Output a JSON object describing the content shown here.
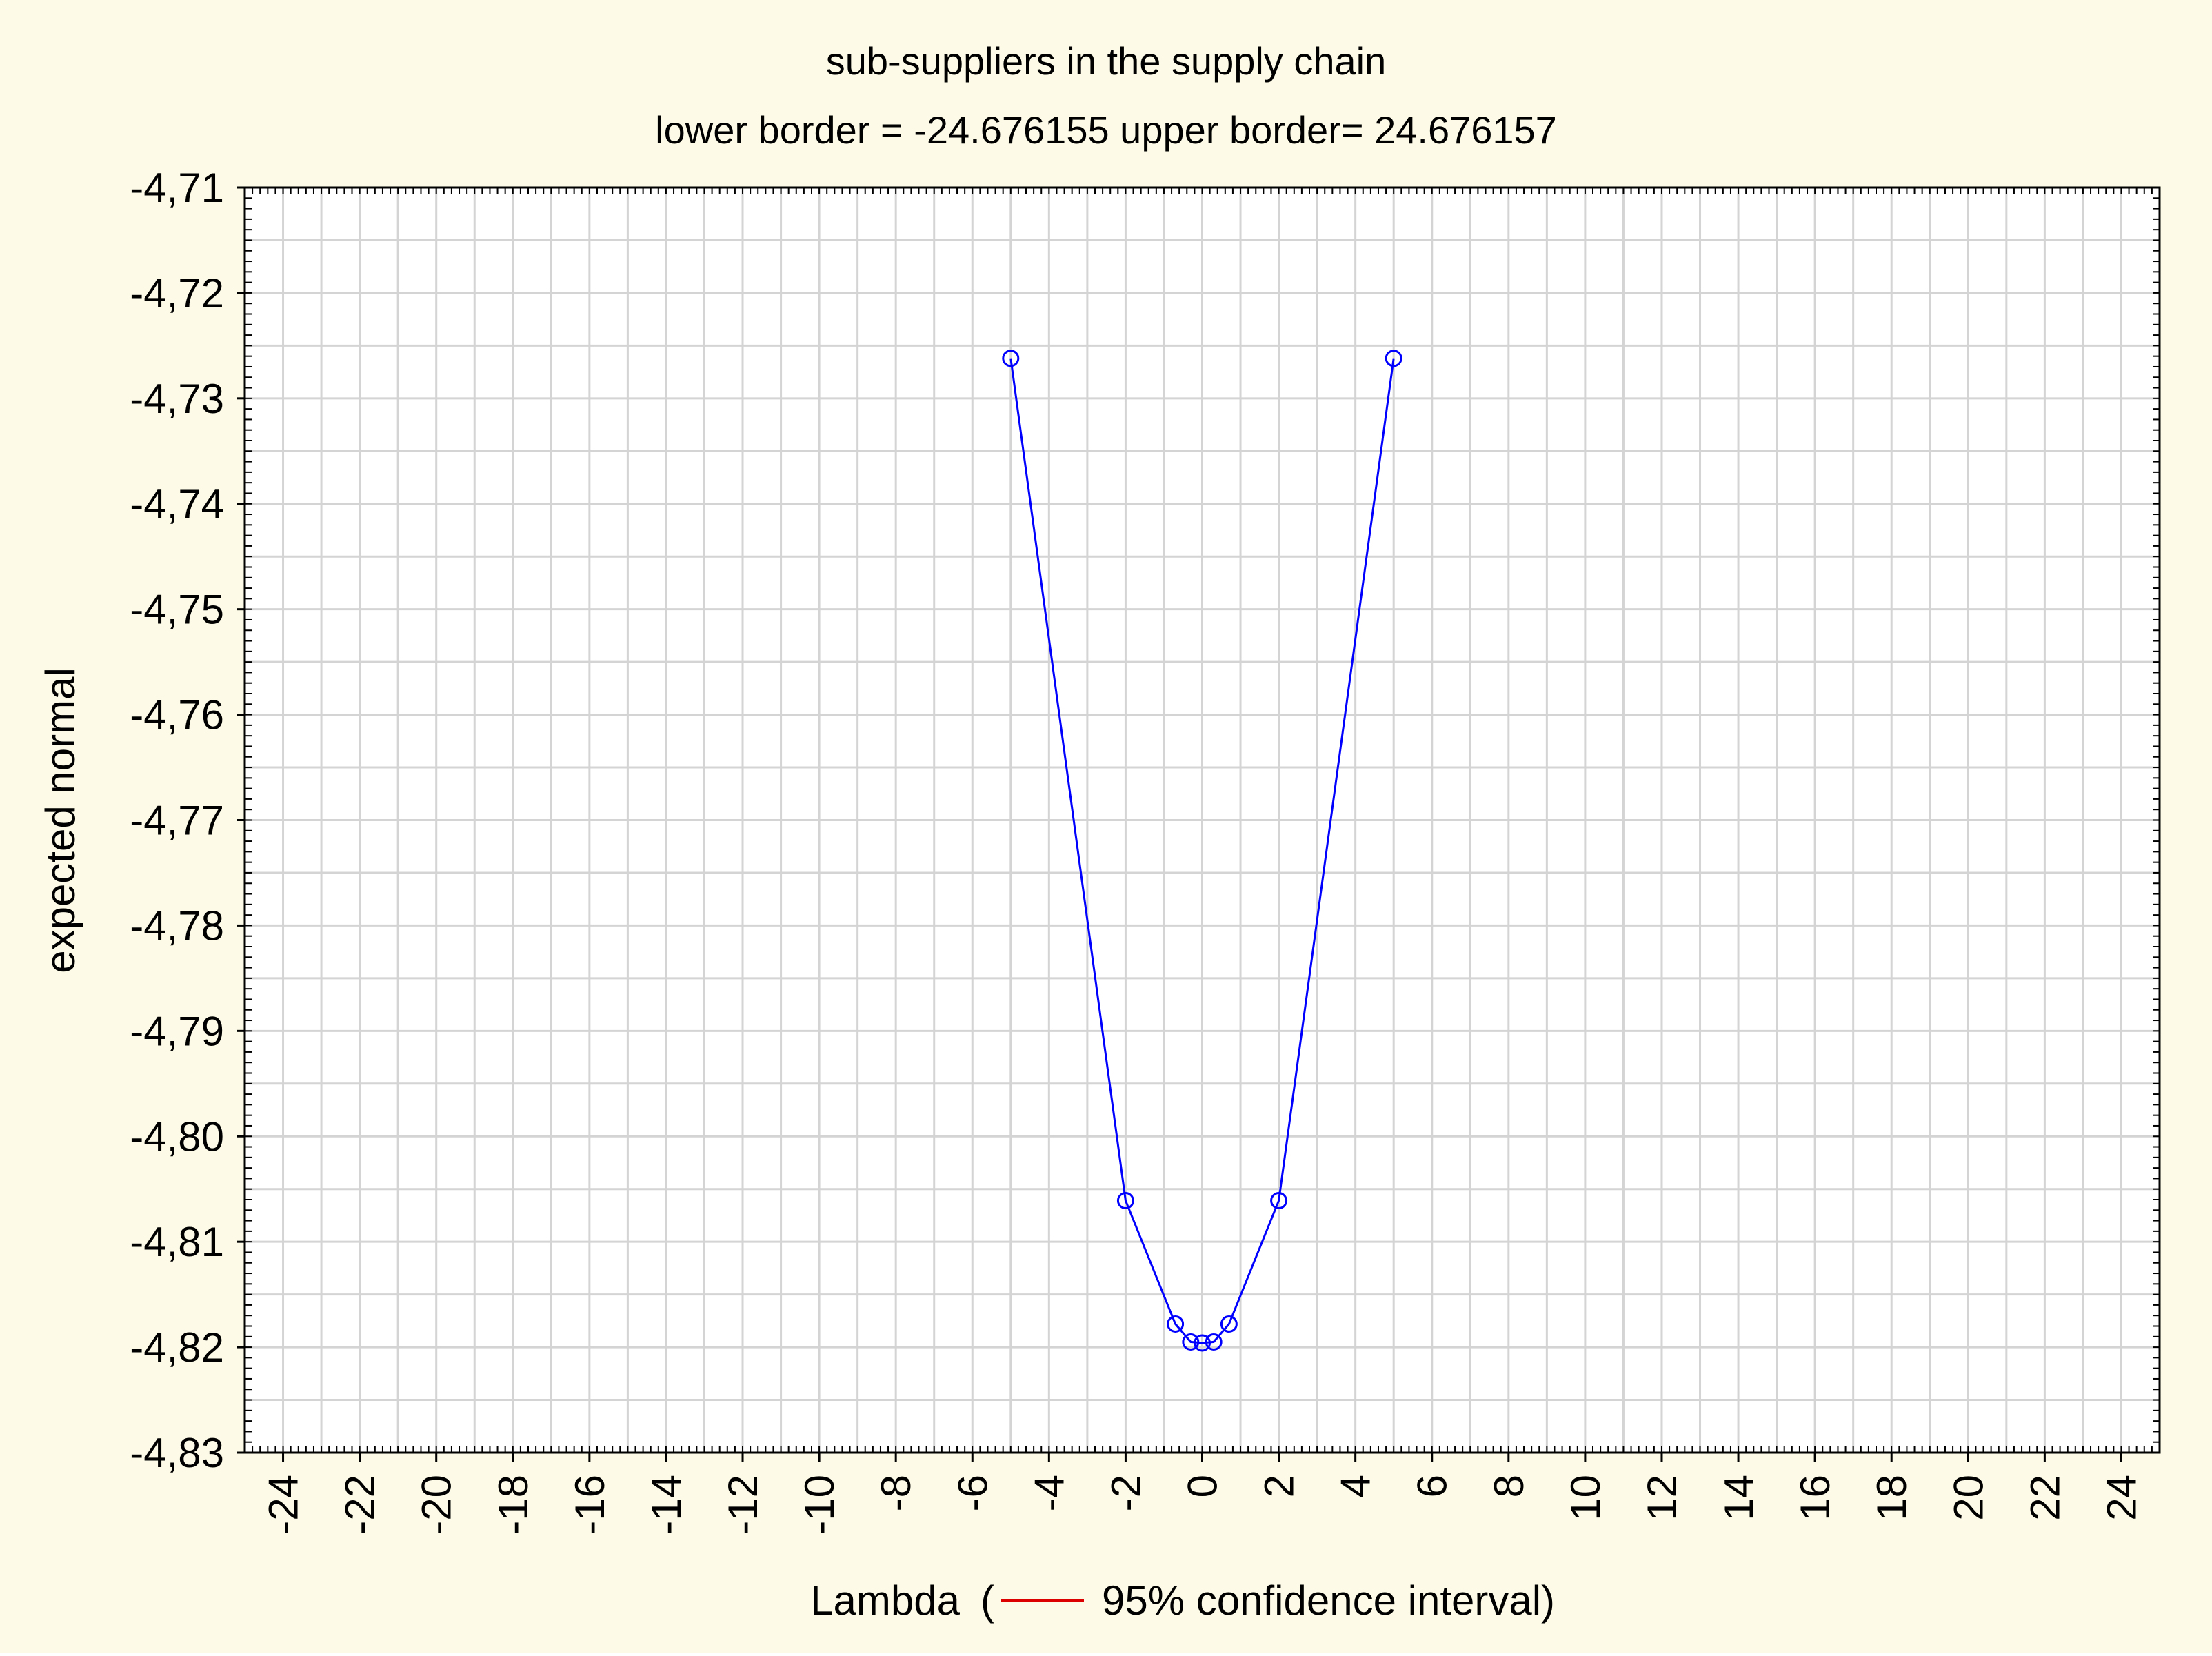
{
  "colors": {
    "page_background": "#fdfbe7",
    "plot_background": "#ffffff",
    "grid": "#d4d4d4",
    "series": "#0000ff",
    "confidence_interval": "#dd0000"
  },
  "chart_data": {
    "type": "line",
    "title": "sub-suppliers in the supply chain",
    "subtitle": "lower border = -24.676155 upper border= 24.676157",
    "xlabel": "Lambda",
    "legend": {
      "open": "(",
      "entry": "95% confidence interval)",
      "line_color": "#dd0000",
      "placement": "inline-with-x-label"
    },
    "ylabel": "expected normal",
    "xlim": [
      -25,
      25
    ],
    "ylim": [
      -4.83,
      -4.71
    ],
    "x_ticks": [
      "-24",
      "-22",
      "-20",
      "-18",
      "-16",
      "-14",
      "-12",
      "-10",
      "-8",
      "-6",
      "-4",
      "-2",
      "0",
      "2",
      "4",
      "6",
      "8",
      "10",
      "12",
      "14",
      "16",
      "18",
      "20",
      "22",
      "24"
    ],
    "y_ticks": [
      "-4,71",
      "-4,72",
      "-4,73",
      "-4,74",
      "-4,75",
      "-4,76",
      "-4,77",
      "-4,78",
      "-4,79",
      "-4,80",
      "-4,81",
      "-4,82",
      "-4,83"
    ],
    "grid": true,
    "series": [
      {
        "marker": "circle",
        "color": "#0000ff",
        "x": [
          -5,
          -2,
          -0.7,
          -0.3,
          0,
          0.3,
          0.7,
          2,
          5
        ],
        "y": [
          -4.7262,
          -4.8061,
          -4.8178,
          -4.8195,
          -4.8196,
          -4.8195,
          -4.8178,
          -4.8061,
          -4.7262
        ]
      }
    ]
  }
}
